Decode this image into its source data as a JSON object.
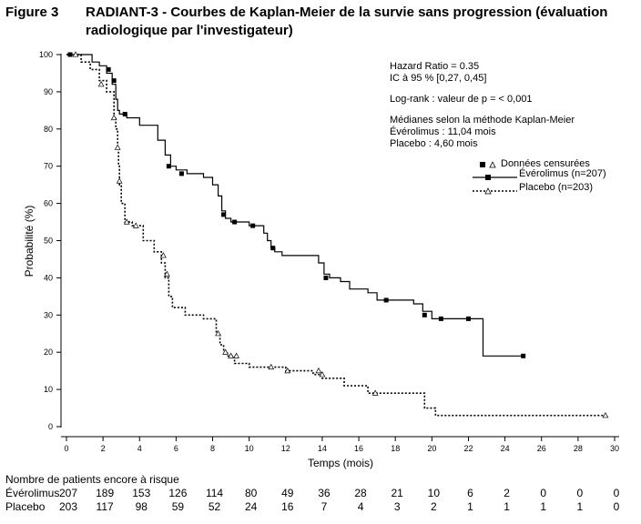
{
  "figure": {
    "label": "Figure 3",
    "title": "RADIANT-3 - Courbes de Kaplan-Meier de la survie sans progression (évaluation radiologique par l'investigateur)"
  },
  "chart_data": {
    "type": "line",
    "subtype": "kaplan-meier step",
    "xlabel": "Temps (mois)",
    "ylabel": "Probabilité (%)",
    "xlim": [
      0,
      30
    ],
    "ylim": [
      0,
      100
    ],
    "xticks": [
      "0",
      "2",
      "4",
      "6",
      "8",
      "10",
      "12",
      "14",
      "16",
      "18",
      "20",
      "22",
      "24",
      "26",
      "28",
      "30"
    ],
    "yticks": [
      "0",
      "10",
      "20",
      "30",
      "40",
      "50",
      "60",
      "70",
      "80",
      "90",
      "100"
    ],
    "grid": false,
    "legend": {
      "title": "Données censurées",
      "placement": "right",
      "entries": [
        "Évérolimus (n=207)",
        "Placebo (n=203)"
      ]
    },
    "annotations": [
      "Hazard Ratio = 0.35",
      "IC à 95 % [0,27, 0,45]",
      "Log-rank : valeur de p = < 0,001",
      "Médianes selon la méthode Kaplan-Meier",
      "Évérolimus : 11,04 mois",
      "Placebo : 4,60 mois"
    ],
    "series": [
      {
        "name": "Évérolimus (n=207)",
        "style": "solid",
        "marker": "filled-square",
        "color": "#000000",
        "x": [
          0,
          1.4,
          1.8,
          2.2,
          2.5,
          2.7,
          2.8,
          2.9,
          3.0,
          3.3,
          4.0,
          5.0,
          5.4,
          5.7,
          6.0,
          6.6,
          7.5,
          8.0,
          8.3,
          8.5,
          8.7,
          9.0,
          10.0,
          10.8,
          11.0,
          11.2,
          11.4,
          11.8,
          13.8,
          14.1,
          14.4,
          15.0,
          15.5,
          16.5,
          17.0,
          19.0,
          19.5,
          20.0,
          22.8,
          25.0
        ],
        "y": [
          100,
          98,
          97,
          95,
          92,
          88,
          85,
          84,
          84,
          83,
          81,
          77,
          73,
          70,
          69,
          68,
          67,
          65,
          62,
          58,
          56,
          55,
          54,
          52,
          50,
          48,
          47,
          46,
          44,
          41,
          40,
          39,
          37,
          36,
          34,
          33,
          31,
          29,
          19,
          19
        ],
        "censored": [
          [
            0.2,
            100
          ],
          [
            2.3,
            96
          ],
          [
            2.6,
            93
          ],
          [
            3.2,
            84
          ],
          [
            5.6,
            70
          ],
          [
            6.3,
            68
          ],
          [
            8.6,
            57
          ],
          [
            9.2,
            55
          ],
          [
            10.2,
            54
          ],
          [
            11.3,
            48
          ],
          [
            14.2,
            40
          ],
          [
            17.5,
            34
          ],
          [
            19.6,
            30
          ],
          [
            20.5,
            29
          ],
          [
            22.0,
            29
          ],
          [
            25.0,
            19
          ]
        ]
      },
      {
        "name": "Placebo (n=203)",
        "style": "dotted",
        "marker": "open-triangle",
        "color": "#000000",
        "x": [
          0,
          0.8,
          1.3,
          1.8,
          2.2,
          2.6,
          2.7,
          2.8,
          2.85,
          2.9,
          3.0,
          3.2,
          3.6,
          4.2,
          4.8,
          5.2,
          5.4,
          5.6,
          5.8,
          6.5,
          7.5,
          8.2,
          8.4,
          8.6,
          8.8,
          9.2,
          10.0,
          11.0,
          12.0,
          13.5,
          14.0,
          15.2,
          16.5,
          19.6,
          20.2,
          29.5
        ],
        "y": [
          100,
          98,
          96,
          93,
          90,
          83,
          80,
          75,
          70,
          65,
          60,
          55,
          54,
          50,
          47,
          44,
          40,
          35,
          32,
          30,
          29,
          25,
          22,
          20,
          19,
          17,
          16,
          16,
          15,
          14,
          13,
          11,
          9,
          5,
          3,
          3
        ],
        "censored": [
          [
            0.5,
            100
          ],
          [
            1.9,
            92
          ],
          [
            2.6,
            83
          ],
          [
            2.8,
            75
          ],
          [
            2.9,
            66
          ],
          [
            3.3,
            55
          ],
          [
            3.8,
            54
          ],
          [
            5.3,
            46
          ],
          [
            5.5,
            41
          ],
          [
            8.3,
            25
          ],
          [
            8.7,
            20
          ],
          [
            9.0,
            19
          ],
          [
            9.3,
            19
          ],
          [
            11.2,
            16
          ],
          [
            12.1,
            15
          ],
          [
            13.8,
            15
          ],
          [
            14.0,
            14
          ],
          [
            16.9,
            9
          ],
          [
            29.5,
            3
          ]
        ]
      }
    ]
  },
  "risk_table": {
    "title": "Nombre de patients encore à risque",
    "rows": [
      {
        "name": "Évérolimus",
        "values": [
          "207",
          "189",
          "153",
          "126",
          "114",
          "80",
          "49",
          "36",
          "28",
          "21",
          "10",
          "6",
          "2",
          "0",
          "0",
          "0"
        ]
      },
      {
        "name": "Placebo",
        "values": [
          "203",
          "117",
          "98",
          "59",
          "52",
          "24",
          "16",
          "7",
          "4",
          "3",
          "2",
          "1",
          "1",
          "1",
          "1",
          "0"
        ]
      }
    ]
  }
}
